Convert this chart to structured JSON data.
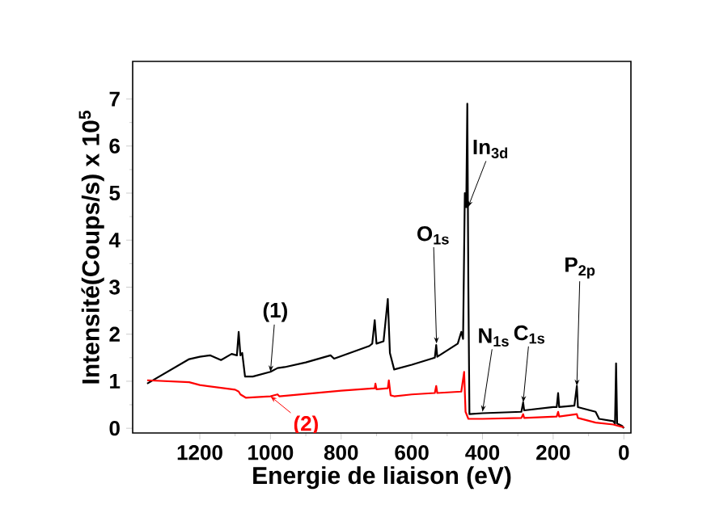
{
  "chart_data": {
    "type": "line",
    "xlabel": "Energie de liaison (eV)",
    "ylabel": "Intensité(Coups/s) x 10$^{5}$",
    "xlim": [
      1390,
      -20
    ],
    "ylim": [
      -0.1,
      7.8
    ],
    "xticks": [
      1200,
      1000,
      800,
      600,
      400,
      200,
      0
    ],
    "yticks": [
      0,
      1,
      2,
      3,
      4,
      5,
      6,
      7
    ],
    "marker": "none",
    "line_style": "solid",
    "series": [
      {
        "color": "#000000",
        "x": [
          1349,
          1230,
          1200,
          1170,
          1140,
          1110,
          1095,
          1090,
          1085,
          1080,
          1072,
          1050,
          1000,
          980,
          960,
          900,
          830,
          820,
          720,
          712,
          705,
          700,
          680,
          668,
          662,
          650,
          600,
          535,
          531,
          528,
          470,
          460,
          455,
          450,
          446,
          443,
          440,
          437,
          400,
          290,
          285,
          282,
          200,
          190,
          186,
          183,
          140,
          133,
          130,
          80,
          70,
          30,
          25,
          22,
          19,
          5,
          0
        ],
        "values": [
          0.95,
          1.47,
          1.52,
          1.55,
          1.45,
          1.58,
          1.55,
          2.05,
          1.55,
          1.6,
          1.1,
          1.1,
          1.2,
          1.28,
          1.3,
          1.4,
          1.55,
          1.48,
          1.75,
          1.8,
          2.3,
          1.8,
          1.85,
          2.75,
          1.6,
          1.25,
          1.35,
          1.5,
          1.77,
          1.52,
          1.8,
          2.05,
          1.9,
          5.0,
          4.7,
          6.9,
          3.0,
          0.3,
          0.32,
          0.35,
          0.55,
          0.38,
          0.45,
          0.45,
          0.75,
          0.45,
          0.48,
          0.9,
          0.45,
          0.35,
          0.2,
          0.15,
          0.1,
          1.38,
          0.1,
          0.05,
          0.0
        ]
      },
      {
        "color": "#ff0000",
        "x": [
          1349,
          1230,
          1200,
          1100,
          1090,
          1085,
          1070,
          1000,
          980,
          975,
          800,
          705,
          703,
          700,
          668,
          665,
          660,
          650,
          600,
          535,
          531,
          528,
          460,
          452,
          448,
          440,
          400,
          290,
          285,
          282,
          190,
          186,
          183,
          133,
          130,
          80,
          30,
          0
        ],
        "values": [
          1.02,
          0.98,
          0.92,
          0.82,
          0.78,
          0.72,
          0.65,
          0.68,
          0.72,
          0.68,
          0.8,
          0.85,
          0.95,
          0.83,
          0.85,
          1.02,
          0.7,
          0.68,
          0.72,
          0.75,
          0.9,
          0.75,
          0.78,
          1.2,
          0.35,
          0.2,
          0.2,
          0.22,
          0.3,
          0.22,
          0.25,
          0.35,
          0.25,
          0.3,
          0.22,
          0.12,
          0.08,
          0.02
        ]
      }
    ],
    "annotations": [
      {
        "text": "(1)",
        "x": 1000,
        "y": 1.2
      },
      {
        "text": "(2)",
        "x": 1000,
        "y": 0.68
      },
      {
        "text": "O$_{1s}$",
        "x": 530,
        "y": 1.8
      },
      {
        "text": "In$_{3d}$",
        "x": 441,
        "y": 4.7
      },
      {
        "text": "N$_{1s}$",
        "x": 400,
        "y": 0.35
      },
      {
        "text": "C$_{1s}$",
        "x": 285,
        "y": 0.55
      },
      {
        "text": "P$_{2p}$",
        "x": 133,
        "y": 0.9
      }
    ]
  }
}
